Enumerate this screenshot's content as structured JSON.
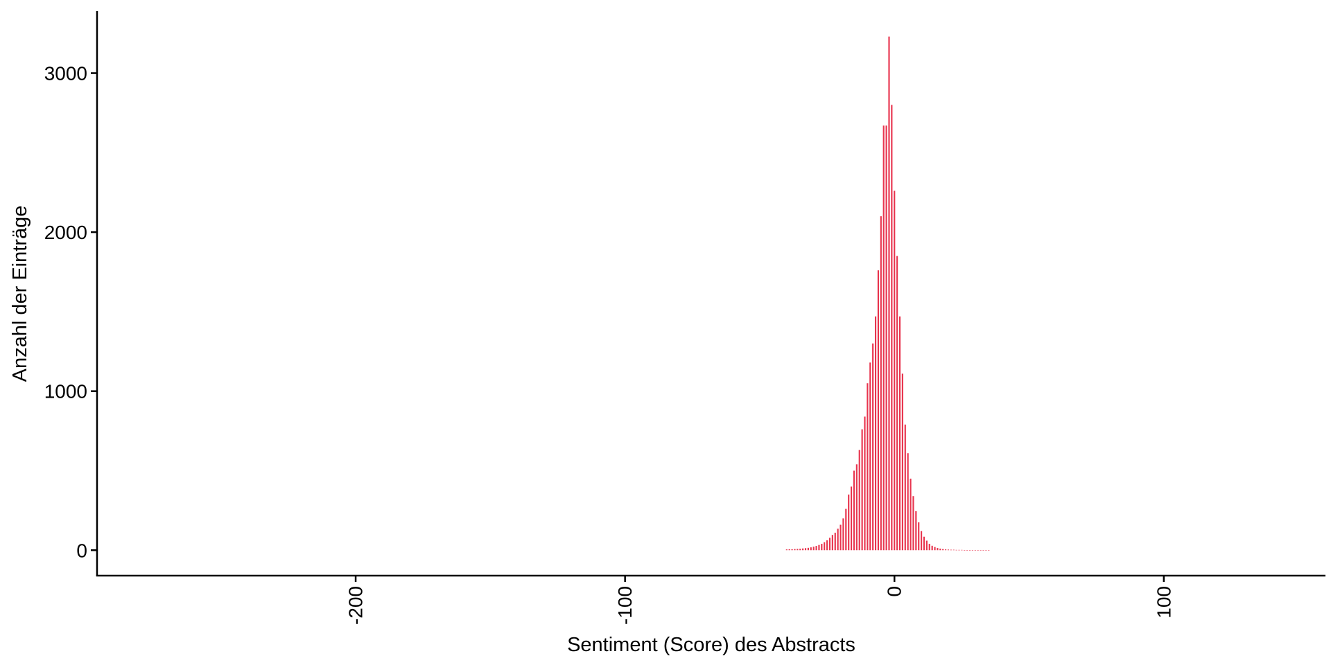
{
  "chart_data": {
    "type": "bar",
    "title": "",
    "xlabel": "Sentiment (Score) des Abstracts",
    "ylabel": "Anzahl der Einträge",
    "xlim": [
      -296,
      160
    ],
    "ylim": [
      -160,
      3390
    ],
    "x_ticks": [
      -200,
      -100,
      0,
      100
    ],
    "x_tick_labels": [
      "-200",
      "-100",
      "0",
      "100"
    ],
    "y_ticks": [
      0,
      1000,
      2000,
      3000
    ],
    "y_tick_labels": [
      "0",
      "1000",
      "2000",
      "3000"
    ],
    "bar_color": "#e8344e",
    "axis_color": "#000000",
    "grid": false,
    "legend": "none",
    "x": [
      -40,
      -39,
      -38,
      -37,
      -36,
      -35,
      -34,
      -33,
      -32,
      -31,
      -30,
      -29,
      -28,
      -27,
      -26,
      -25,
      -24,
      -23,
      -22,
      -21,
      -20,
      -19,
      -18,
      -17,
      -16,
      -15,
      -14,
      -13,
      -12,
      -11,
      -10,
      -9,
      -8,
      -7,
      -6,
      -5,
      -4,
      -3,
      -2,
      -1,
      0,
      1,
      2,
      3,
      4,
      5,
      6,
      7,
      8,
      9,
      10,
      11,
      12,
      13,
      14,
      15,
      16,
      17,
      18,
      19,
      20,
      21,
      22,
      23,
      24,
      25,
      26,
      27,
      28,
      29,
      30,
      31,
      32,
      33,
      34,
      35
    ],
    "values": [
      5,
      6,
      6,
      7,
      8,
      9,
      11,
      13,
      15,
      18,
      22,
      27,
      33,
      40,
      50,
      62,
      78,
      96,
      110,
      135,
      160,
      200,
      260,
      350,
      400,
      500,
      540,
      630,
      760,
      840,
      1050,
      1180,
      1300,
      1470,
      1760,
      2100,
      2670,
      2670,
      3230,
      2800,
      2260,
      1850,
      1470,
      1110,
      790,
      610,
      450,
      340,
      245,
      175,
      120,
      85,
      60,
      40,
      28,
      20,
      14,
      10,
      7,
      5,
      4,
      3,
      3,
      2,
      2,
      2,
      1,
      1,
      1,
      1,
      1,
      1,
      1,
      1,
      1,
      1
    ]
  }
}
